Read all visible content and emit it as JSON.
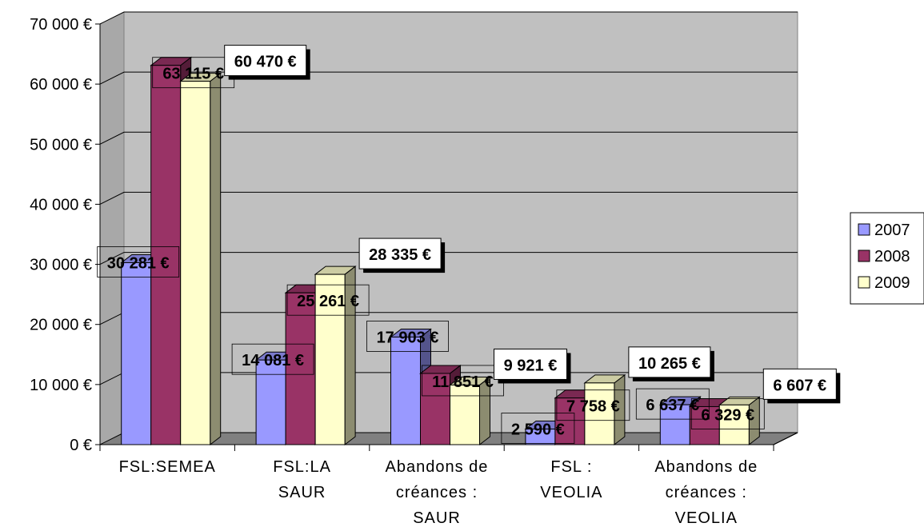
{
  "chart_data": {
    "type": "bar",
    "categories": [
      [
        "FSL:SEMEA"
      ],
      [
        "FSL:LA",
        "SAUR"
      ],
      [
        "Abandons de",
        "créances :",
        "SAUR"
      ],
      [
        "FSL :",
        "VEOLIA"
      ],
      [
        "Abandons de",
        "créances :",
        "VEOLIA"
      ]
    ],
    "series": [
      {
        "name": "2007",
        "color": "#9999ff",
        "values": [
          30281,
          14081,
          17903,
          2590,
          6637
        ],
        "labels": [
          "30 281 €",
          "14 081 €",
          "17 903 €",
          "2 590 €",
          "6 637 €"
        ]
      },
      {
        "name": "2008",
        "color": "#993366",
        "values": [
          63115,
          25261,
          11851,
          7758,
          6329
        ],
        "labels": [
          "63 115 €",
          "25 261 €",
          "11 851 €",
          "7 758 €",
          "6 329 €"
        ]
      },
      {
        "name": "2009",
        "color": "#ffffcc",
        "values": [
          60470,
          28335,
          9921,
          10265,
          6607
        ],
        "labels": [
          "60 470 €",
          "28 335 €",
          "9 921 €",
          "10 265 €",
          "6 607 €"
        ]
      }
    ],
    "y_ticks": [
      "0 €",
      "10 000 €",
      "20 000 €",
      "30 000 €",
      "40 000 €",
      "50 000 €",
      "60 000 €",
      "70 000 €"
    ],
    "ylim": [
      0,
      70000
    ],
    "grid": true,
    "legend_position": "right",
    "wall_color": "#c0c0c0",
    "floor_color": "#808080"
  }
}
